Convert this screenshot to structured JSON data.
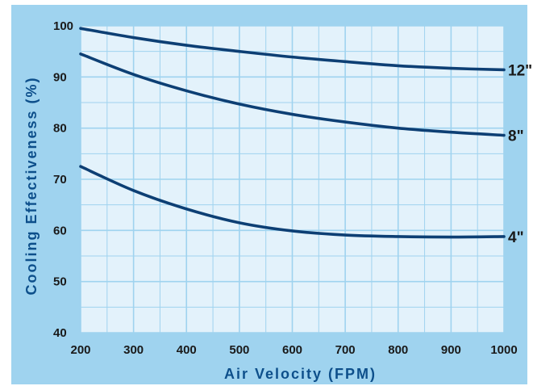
{
  "chart_data": {
    "type": "line",
    "title": "",
    "xlabel": "Air Velocity (FPM)",
    "ylabel": "Cooling Effectiveness (%)",
    "xlim": [
      200,
      1000
    ],
    "ylim": [
      40,
      100
    ],
    "x_ticks": [
      200,
      300,
      400,
      500,
      600,
      700,
      800,
      900,
      1000
    ],
    "y_ticks": [
      40,
      50,
      60,
      70,
      80,
      90,
      100
    ],
    "x_tick_labels": [
      "200",
      "300",
      "400",
      "500",
      "600",
      "700",
      "800",
      "900",
      "1000"
    ],
    "y_tick_labels": [
      "40",
      "50",
      "60",
      "70",
      "80",
      "90",
      "100"
    ],
    "grid": true,
    "x_minor_gridlines_per_major": 2,
    "y_minor_gridlines_per_major": 2,
    "x": [
      200,
      300,
      400,
      500,
      600,
      700,
      800,
      900,
      1000
    ],
    "series": [
      {
        "name": "12\"",
        "values": [
          99.5,
          97.7,
          96.2,
          95.0,
          93.9,
          93.0,
          92.2,
          91.7,
          91.4
        ]
      },
      {
        "name": "8\"",
        "values": [
          94.5,
          90.5,
          87.3,
          84.7,
          82.7,
          81.2,
          80.0,
          79.2,
          78.6
        ]
      },
      {
        "name": "4\"",
        "values": [
          72.5,
          67.8,
          64.2,
          61.5,
          59.9,
          59.1,
          58.8,
          58.7,
          58.8
        ]
      }
    ],
    "colors": {
      "background": "#9fd3ef",
      "plot_area": "#e3f2fb",
      "gridline": "#9fd3ef",
      "line": "#0d3f74",
      "axis_title": "#0d4f8b",
      "tick_text": "#1a1a1a"
    }
  }
}
